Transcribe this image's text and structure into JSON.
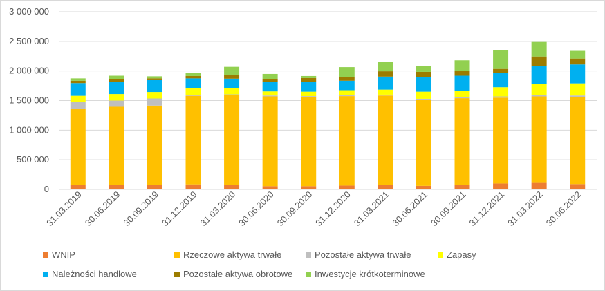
{
  "chart_data": {
    "type": "bar",
    "stacked": true,
    "title": "",
    "xlabel": "",
    "ylabel": "",
    "ylim": [
      0,
      3000000
    ],
    "y_ticks": [
      "0",
      "500 000",
      "1 000 000",
      "1 500 000",
      "2 000 000",
      "2 500 000",
      "3 000 000"
    ],
    "grid": true,
    "legend_position": "bottom",
    "categories": [
      "31.03.2019",
      "30.06.2019",
      "30.09.2019",
      "31.12.2019",
      "31.03.2020",
      "30.06.2020",
      "30.09.2020",
      "31.12.2020",
      "31.03.2021",
      "30.06.2021",
      "30.09.2021",
      "31.12.2021",
      "31.03.2022",
      "30.06.2022"
    ],
    "series": [
      {
        "name": "WNIP",
        "color": "#ed7d31",
        "values": [
          70000,
          75000,
          75000,
          85000,
          75000,
          55000,
          55000,
          65000,
          75000,
          60000,
          75000,
          100000,
          110000,
          90000
        ]
      },
      {
        "name": "Rzeczowe aktywa trwałe",
        "color": "#ffc000",
        "values": [
          1295000,
          1320000,
          1340000,
          1495000,
          1515000,
          1515000,
          1505000,
          1510000,
          1510000,
          1455000,
          1465000,
          1450000,
          1460000,
          1470000
        ]
      },
      {
        "name": "Pozostałe aktywa trwałe",
        "color": "#bfbfbf",
        "values": [
          115000,
          105000,
          120000,
          15000,
          15000,
          15000,
          15000,
          15000,
          15000,
          15000,
          15000,
          20000,
          20000,
          25000
        ]
      },
      {
        "name": "Zapasy",
        "color": "#ffff00",
        "values": [
          100000,
          110000,
          110000,
          115000,
          100000,
          70000,
          75000,
          85000,
          85000,
          120000,
          110000,
          155000,
          185000,
          205000
        ]
      },
      {
        "name": "Należności handlowe",
        "color": "#00b0f0",
        "values": [
          215000,
          210000,
          200000,
          165000,
          165000,
          160000,
          170000,
          160000,
          220000,
          250000,
          255000,
          240000,
          310000,
          320000
        ]
      },
      {
        "name": "Pozostałe aktywa obrotowe",
        "color": "#9c7c00",
        "values": [
          40000,
          45000,
          30000,
          40000,
          60000,
          50000,
          60000,
          60000,
          90000,
          85000,
          80000,
          70000,
          160000,
          100000
        ]
      },
      {
        "name": "Inwestycje krótkoterminowe",
        "color": "#92d050",
        "values": [
          40000,
          55000,
          35000,
          55000,
          140000,
          85000,
          35000,
          170000,
          155000,
          100000,
          180000,
          320000,
          245000,
          130000
        ]
      }
    ]
  }
}
